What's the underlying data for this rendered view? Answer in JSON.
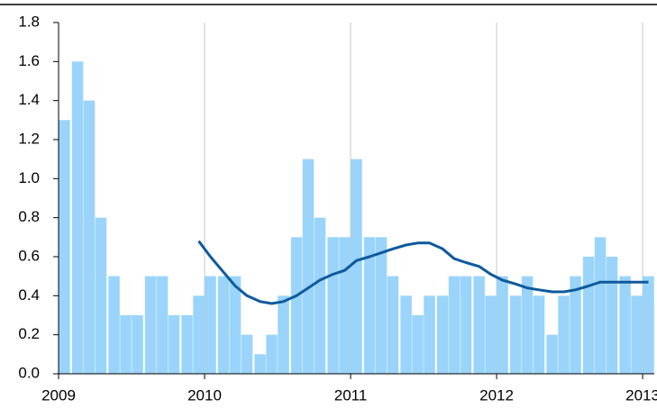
{
  "chart_data": {
    "type": "bar",
    "x": [
      2009.04,
      2009.13,
      2009.21,
      2009.29,
      2009.38,
      2009.46,
      2009.54,
      2009.63,
      2009.71,
      2009.79,
      2009.88,
      2009.96,
      2010.04,
      2010.13,
      2010.21,
      2010.29,
      2010.38,
      2010.46,
      2010.54,
      2010.63,
      2010.71,
      2010.79,
      2010.88,
      2010.96,
      2011.04,
      2011.13,
      2011.21,
      2011.29,
      2011.38,
      2011.46,
      2011.54,
      2011.63,
      2011.71,
      2011.79,
      2011.88,
      2011.96,
      2012.04,
      2012.13,
      2012.21,
      2012.29,
      2012.38,
      2012.46,
      2012.54,
      2012.63,
      2012.71,
      2012.79,
      2012.88,
      2012.96,
      2013.04
    ],
    "series": [
      {
        "type": "bar",
        "color": "#9ad4fa",
        "values": [
          1.3,
          1.6,
          1.4,
          0.8,
          0.5,
          0.3,
          0.3,
          0.5,
          0.5,
          0.3,
          0.3,
          0.4,
          0.5,
          0.5,
          0.5,
          0.2,
          0.1,
          0.2,
          0.4,
          0.7,
          1.1,
          0.8,
          0.7,
          0.7,
          1.1,
          0.7,
          0.7,
          0.5,
          0.4,
          0.3,
          0.4,
          0.4,
          0.5,
          0.5,
          0.5,
          0.4,
          0.5,
          0.4,
          0.5,
          0.4,
          0.2,
          0.4,
          0.5,
          0.6,
          0.7,
          0.6,
          0.5,
          0.4,
          0.5
        ]
      },
      {
        "type": "line",
        "color": "#0e5a9c",
        "values": [
          null,
          null,
          null,
          null,
          null,
          null,
          null,
          null,
          null,
          null,
          null,
          0.68,
          0.6,
          0.52,
          0.45,
          0.4,
          0.37,
          0.36,
          0.37,
          0.4,
          0.44,
          0.48,
          0.51,
          0.53,
          0.58,
          0.6,
          0.62,
          0.64,
          0.66,
          0.67,
          0.67,
          0.64,
          0.59,
          0.57,
          0.55,
          0.51,
          0.48,
          0.46,
          0.44,
          0.43,
          0.42,
          0.42,
          0.43,
          0.45,
          0.47,
          0.47,
          0.47,
          0.47,
          0.47
        ]
      }
    ],
    "xlim": [
      2009,
      2013.08
    ],
    "xticks": [
      2009,
      2010,
      2011,
      2012,
      2013
    ],
    "ylim": [
      0,
      1.8
    ],
    "yticks": [
      {
        "value": 0,
        "label": "0.0"
      },
      0.2,
      0.4,
      0.6,
      0.8,
      {
        "value": 1,
        "label": "1.0"
      },
      1.2,
      1.4,
      1.6,
      1.8
    ],
    "grid": "x"
  }
}
